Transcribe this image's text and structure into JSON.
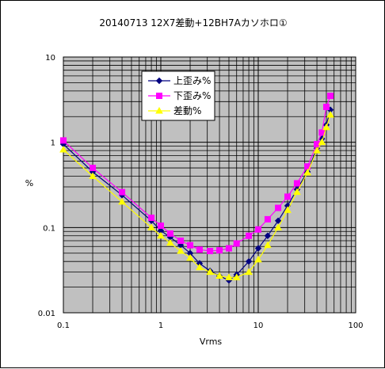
{
  "chart_data": {
    "type": "line",
    "title": "20140713 12X7差動+12BH7Aカソホロ①",
    "xlabel": "Vrms",
    "ylabel": "%",
    "xscale": "log",
    "yscale": "log",
    "xlim": [
      0.1,
      100
    ],
    "ylim": [
      0.01,
      10
    ],
    "x_ticks": [
      "0.1",
      "1",
      "10",
      "100"
    ],
    "y_ticks": [
      "0.01",
      "0.1",
      "1",
      "10"
    ],
    "grid": true,
    "legend_position": "top-left",
    "series": [
      {
        "name": "上歪み%",
        "color": "#000080",
        "marker": "diamond",
        "x": [
          0.1,
          0.2,
          0.4,
          0.8,
          1.0,
          1.25,
          1.6,
          2.0,
          2.5,
          3.2,
          4.0,
          5.0,
          6.0,
          8.0,
          10,
          12.5,
          16,
          20,
          25,
          32,
          40,
          45,
          50,
          55
        ],
        "y": [
          0.95,
          0.45,
          0.24,
          0.12,
          0.092,
          0.077,
          0.062,
          0.05,
          0.038,
          0.031,
          0.027,
          0.024,
          0.028,
          0.04,
          0.057,
          0.08,
          0.12,
          0.18,
          0.28,
          0.45,
          0.85,
          1.1,
          1.6,
          2.4
        ]
      },
      {
        "name": "下歪み%",
        "color": "#ff00ff",
        "marker": "square",
        "x": [
          0.1,
          0.2,
          0.4,
          0.8,
          1.0,
          1.25,
          1.6,
          2.0,
          2.5,
          3.2,
          4.0,
          5.0,
          6.0,
          8.0,
          10,
          12.5,
          16,
          20,
          25,
          32,
          40,
          45,
          50,
          55
        ],
        "y": [
          1.05,
          0.5,
          0.26,
          0.13,
          0.105,
          0.085,
          0.07,
          0.062,
          0.055,
          0.053,
          0.054,
          0.057,
          0.065,
          0.08,
          0.095,
          0.125,
          0.17,
          0.23,
          0.33,
          0.52,
          0.95,
          1.3,
          2.6,
          3.5
        ]
      },
      {
        "name": "差動%",
        "color": "#ffff00",
        "marker": "triangle",
        "x": [
          0.1,
          0.2,
          0.4,
          0.8,
          1.0,
          1.25,
          1.6,
          2.0,
          2.5,
          3.2,
          4.0,
          5.0,
          6.0,
          8.0,
          10,
          12.5,
          16,
          20,
          25,
          32,
          40,
          45,
          50,
          55
        ],
        "y": [
          0.82,
          0.4,
          0.2,
          0.1,
          0.08,
          0.066,
          0.053,
          0.044,
          0.034,
          0.03,
          0.027,
          0.026,
          0.026,
          0.03,
          0.042,
          0.062,
          0.1,
          0.16,
          0.26,
          0.44,
          0.8,
          1.0,
          1.5,
          2.1
        ]
      }
    ]
  }
}
